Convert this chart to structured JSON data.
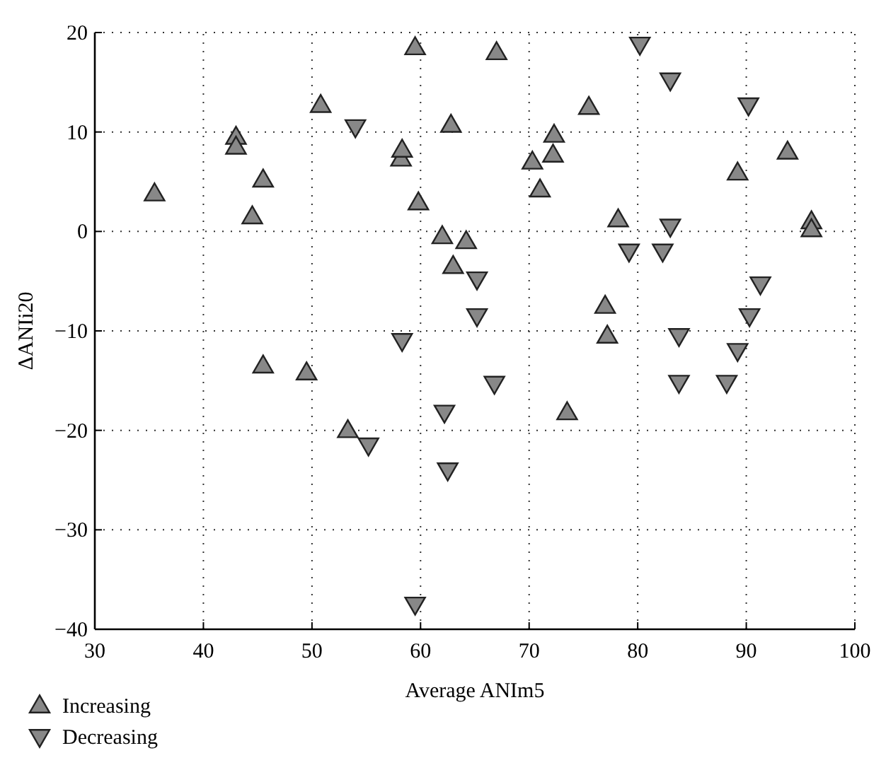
{
  "chart_data": {
    "type": "scatter",
    "xlabel": "Average ANIm5",
    "ylabel": "ΔANIi20",
    "xlim": [
      30,
      100
    ],
    "ylim": [
      -40,
      20
    ],
    "xticks": [
      30,
      40,
      50,
      60,
      70,
      80,
      90,
      100
    ],
    "yticks": [
      -40,
      -30,
      -20,
      -10,
      0,
      10,
      20
    ],
    "grid": true,
    "legend": "bottom",
    "series": [
      {
        "name": "Increasing",
        "color": "#888888",
        "marker": "triangle",
        "x": [
          35.5,
          43,
          43,
          44.5,
          45.5,
          45.5,
          49.5,
          50.8,
          53.3,
          58.2,
          58.3,
          59.5,
          59.8,
          62,
          62.8,
          63,
          64.2,
          67,
          70.3,
          71,
          72.2,
          72.3,
          75.5,
          77,
          77.2,
          78.2,
          89.2,
          93.8,
          96,
          96,
          73.5
        ],
        "values": [
          3.8,
          9.5,
          8.5,
          1.5,
          5.2,
          -13.5,
          -14.2,
          12.7,
          -20,
          7.3,
          8.2,
          18.5,
          2.9,
          -0.5,
          10.7,
          -3.5,
          -1,
          18,
          7,
          4.2,
          7.7,
          9.7,
          12.5,
          -7.5,
          -10.5,
          1.2,
          5.9,
          8,
          1,
          0.2,
          -18.2
        ]
      },
      {
        "name": "Decreasing",
        "color": "#888888",
        "marker": "triangle-down",
        "x": [
          54,
          55.2,
          58.3,
          59.5,
          62.2,
          62.5,
          65.2,
          65.2,
          66.8,
          80.2,
          79.2,
          82.3,
          83,
          83,
          83.8,
          83.8,
          88.2,
          89.2,
          90.2,
          90.3,
          91.3
        ],
        "values": [
          10.5,
          -21.5,
          -11,
          -37.5,
          -18.2,
          -24,
          -4.8,
          -8.5,
          -15.3,
          18.8,
          -2,
          -2,
          15.2,
          0.5,
          -10.5,
          -15.2,
          -15.2,
          -12,
          12.7,
          -8.5,
          -5.3
        ]
      }
    ]
  }
}
